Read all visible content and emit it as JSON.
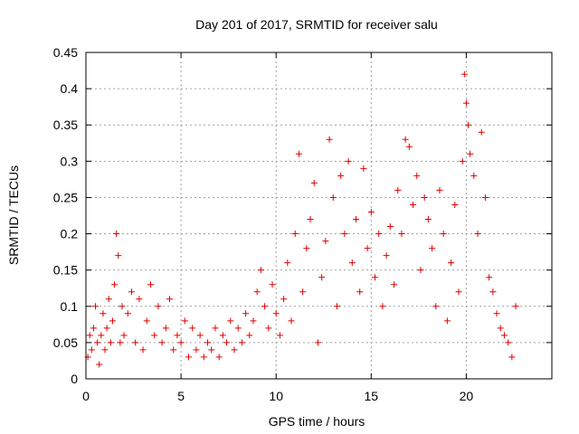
{
  "chart_data": {
    "type": "scatter",
    "title": "Day 201 of 2017, SRMTID for receiver salu",
    "xlabel": "GPS time / hours",
    "ylabel": "SRMTID / TECUs",
    "xlim": [
      0,
      24.5
    ],
    "ylim": [
      0,
      0.45
    ],
    "xticks": [
      0,
      5,
      10,
      15,
      20
    ],
    "xtick_labels": [
      "0",
      "5",
      "10",
      "15",
      "20"
    ],
    "yticks": [
      0,
      0.05,
      0.1,
      0.15,
      0.2,
      0.25,
      0.3,
      0.35,
      0.4,
      0.45
    ],
    "ytick_labels": [
      "0",
      "0.05",
      "0.1",
      "0.15",
      "0.2",
      "0.25",
      "0.3",
      "0.35",
      "0.4",
      "0.45"
    ],
    "grid": true,
    "marker": "plus",
    "color": "#e00000",
    "series": [
      {
        "name": "SRMTID",
        "x": [
          0.1,
          0.2,
          0.3,
          0.4,
          0.5,
          0.6,
          0.7,
          0.8,
          0.9,
          1.0,
          1.1,
          1.2,
          1.3,
          1.4,
          1.5,
          1.6,
          1.7,
          1.8,
          1.9,
          2.0,
          2.2,
          2.4,
          2.6,
          2.8,
          3.0,
          3.2,
          3.4,
          3.6,
          3.8,
          4.0,
          4.2,
          4.4,
          4.6,
          4.8,
          5.0,
          5.2,
          5.4,
          5.6,
          5.8,
          6.0,
          6.2,
          6.4,
          6.6,
          6.8,
          7.0,
          7.2,
          7.4,
          7.6,
          7.8,
          8.0,
          8.2,
          8.4,
          8.6,
          8.8,
          9.0,
          9.2,
          9.4,
          9.6,
          9.8,
          10.0,
          10.2,
          10.4,
          10.6,
          10.8,
          11.0,
          11.2,
          11.4,
          11.6,
          11.8,
          12.0,
          12.2,
          12.4,
          12.6,
          12.8,
          13.0,
          13.2,
          13.4,
          13.6,
          13.8,
          14.0,
          14.2,
          14.4,
          14.6,
          14.8,
          15.0,
          15.2,
          15.4,
          15.6,
          15.8,
          16.0,
          16.2,
          16.4,
          16.6,
          16.8,
          17.0,
          17.2,
          17.4,
          17.6,
          17.8,
          18.0,
          18.2,
          18.4,
          18.6,
          18.8,
          19.0,
          19.2,
          19.4,
          19.6,
          19.8,
          19.9,
          20.0,
          20.1,
          20.2,
          20.4,
          20.6,
          20.8,
          21.0,
          21.2,
          21.4,
          21.6,
          21.8,
          22.0,
          22.2,
          22.4,
          22.6
        ],
        "y": [
          0.03,
          0.06,
          0.04,
          0.07,
          0.1,
          0.05,
          0.02,
          0.06,
          0.09,
          0.04,
          0.07,
          0.11,
          0.05,
          0.08,
          0.13,
          0.2,
          0.17,
          0.05,
          0.1,
          0.06,
          0.09,
          0.12,
          0.05,
          0.11,
          0.04,
          0.08,
          0.13,
          0.06,
          0.1,
          0.05,
          0.07,
          0.11,
          0.04,
          0.06,
          0.05,
          0.08,
          0.03,
          0.07,
          0.04,
          0.06,
          0.03,
          0.05,
          0.04,
          0.07,
          0.03,
          0.06,
          0.05,
          0.08,
          0.04,
          0.07,
          0.05,
          0.09,
          0.06,
          0.08,
          0.12,
          0.15,
          0.1,
          0.07,
          0.13,
          0.09,
          0.06,
          0.11,
          0.16,
          0.08,
          0.2,
          0.31,
          0.12,
          0.18,
          0.22,
          0.27,
          0.05,
          0.14,
          0.19,
          0.33,
          0.25,
          0.1,
          0.28,
          0.2,
          0.3,
          0.16,
          0.22,
          0.12,
          0.29,
          0.18,
          0.23,
          0.14,
          0.2,
          0.1,
          0.17,
          0.21,
          0.13,
          0.26,
          0.2,
          0.33,
          0.32,
          0.24,
          0.28,
          0.15,
          0.25,
          0.22,
          0.18,
          0.1,
          0.26,
          0.2,
          0.08,
          0.16,
          0.24,
          0.12,
          0.3,
          0.42,
          0.38,
          0.35,
          0.31,
          0.28,
          0.2,
          0.34,
          0.25,
          0.14,
          0.12,
          0.09,
          0.07,
          0.06,
          0.05,
          0.03,
          0.1
        ]
      }
    ]
  }
}
